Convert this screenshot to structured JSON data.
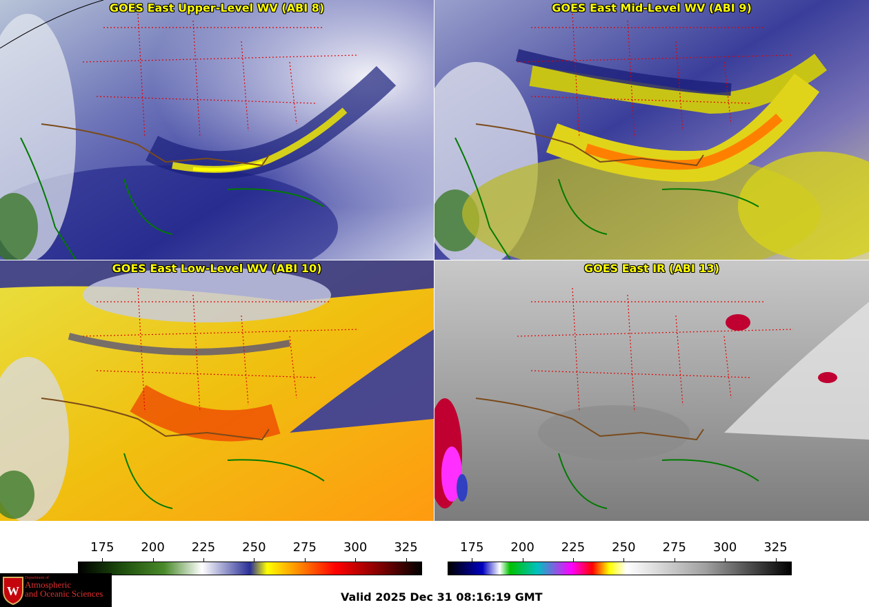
{
  "panels": [
    {
      "title": "GOES East Upper-Level WV (ABI 8)"
    },
    {
      "title": "GOES East Mid-Level WV (ABI 9)"
    },
    {
      "title": "GOES East Low-Level WV (ABI 10)"
    },
    {
      "title": "GOES East IR (ABI 13)"
    }
  ],
  "colorbar_wv": {
    "ticks": [
      "175",
      "200",
      "225",
      "250",
      "275",
      "300",
      "325"
    ],
    "tick_values": [
      175,
      200,
      225,
      250,
      275,
      300,
      325
    ],
    "range": [
      163,
      333
    ]
  },
  "colorbar_ir": {
    "ticks": [
      "175",
      "200",
      "225",
      "250",
      "275",
      "300",
      "325"
    ],
    "tick_values": [
      175,
      200,
      225,
      250,
      275,
      300,
      325
    ],
    "range": [
      163,
      333
    ]
  },
  "logo": {
    "line1": "Department of",
    "line2": "Atmospheric",
    "line3": "and Oceanic Sciences"
  },
  "valid_time": "Valid 2025 Dec 31 08:16:19 GMT"
}
